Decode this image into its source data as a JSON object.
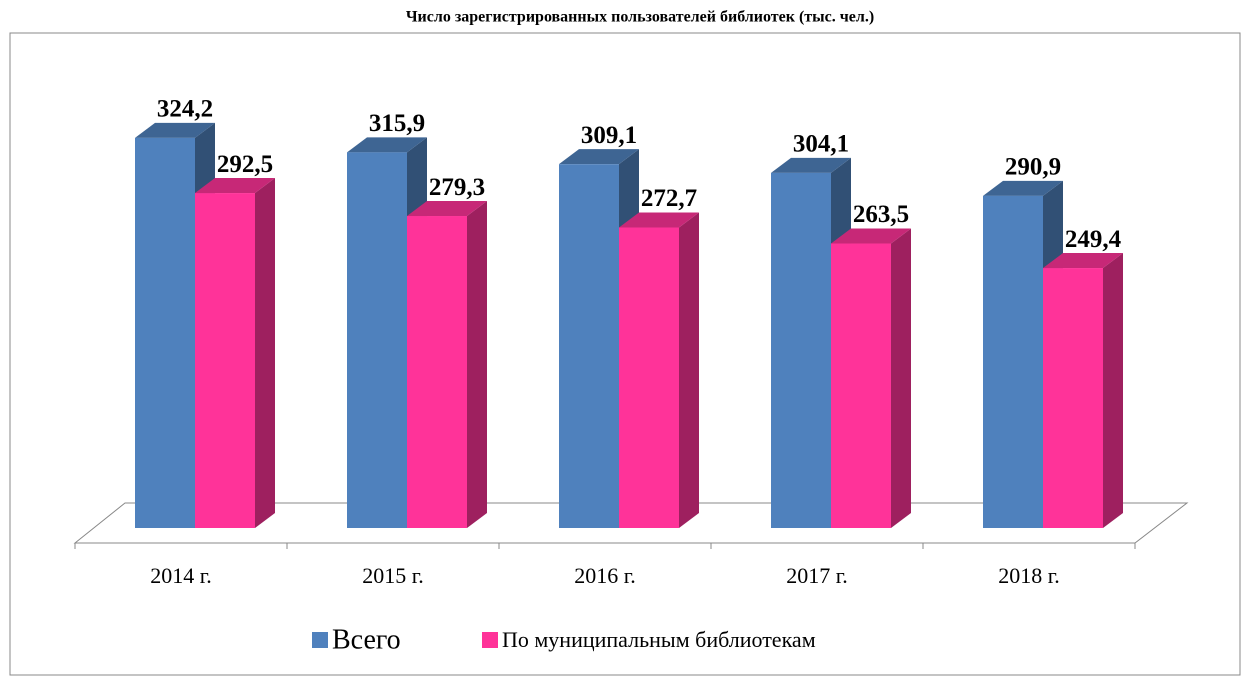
{
  "chart_data": {
    "type": "bar3d",
    "title": "Число зарегистрированных пользователей библиотек (тыс. чел.)",
    "categories": [
      "2014 г.",
      "2015 г.",
      "2016 г.",
      "2017 г.",
      "2018 г."
    ],
    "series": [
      {
        "name": "Всего",
        "color": "#4f81bd",
        "values": [
          324.2,
          315.9,
          309.1,
          304.1,
          290.9
        ],
        "value_labels": [
          "324,2",
          "315,9",
          "309,1",
          "304,1",
          "290,9"
        ]
      },
      {
        "name": "По муниципальным библиотекам",
        "color": "#ff3399",
        "values": [
          292.5,
          279.3,
          272.7,
          263.5,
          249.4
        ],
        "value_labels": [
          "292,5",
          "279,3",
          "272,7",
          "263,5",
          "249,4"
        ]
      }
    ],
    "ylim": [
      100,
      350
    ],
    "legend": "bottom"
  }
}
